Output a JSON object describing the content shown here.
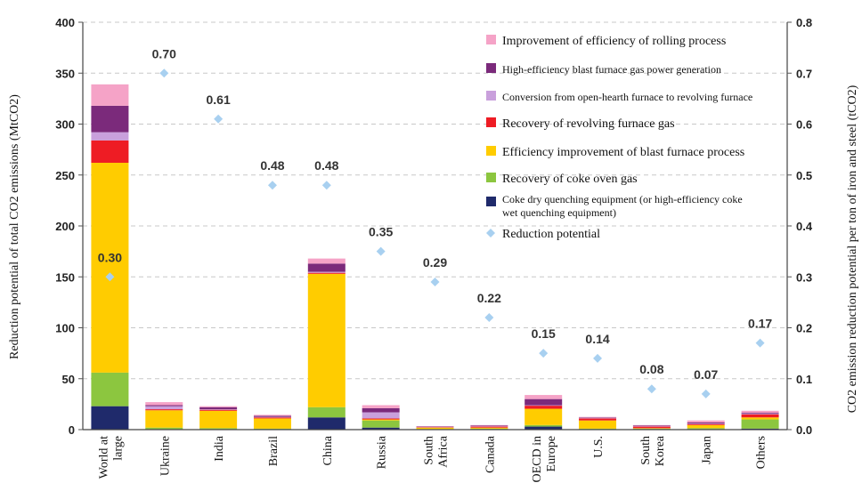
{
  "chart_data": {
    "type": "bar",
    "stacked": true,
    "y_left_label": "Reduction potential of total CO2 emissions (MtCO2)",
    "y_right_label": "CO2 emission reduction potential per ton of iron and steel (tCO2)",
    "y_left_range": [
      0,
      400
    ],
    "y_left_ticks": [
      "0",
      "50",
      "100",
      "150",
      "200",
      "250",
      "300",
      "350",
      "400"
    ],
    "y_right_range": [
      0,
      0.8
    ],
    "y_right_ticks": [
      "0.0",
      "0.1",
      "0.2",
      "0.3",
      "0.4",
      "0.5",
      "0.6",
      "0.7",
      "0.8"
    ],
    "grid": "horizontal-dashed",
    "legend_position": "top-right",
    "categories": [
      {
        "line1": "World at",
        "line2": "large",
        "color": "#111111"
      },
      {
        "line1": "Ukraine",
        "line2": "",
        "color": "#111111"
      },
      {
        "line1": "India",
        "line2": "",
        "color": "#111111"
      },
      {
        "line1": "Brazil",
        "line2": "",
        "color": "#111111"
      },
      {
        "line1": "China",
        "line2": "",
        "color": "#111111"
      },
      {
        "line1": "Russia",
        "line2": "",
        "color": "#111111"
      },
      {
        "line1": "South",
        "line2": "Africa",
        "color": "#111111"
      },
      {
        "line1": "Canada",
        "line2": "",
        "color": "#111111"
      },
      {
        "line1": "OECD in",
        "line2": "Europe",
        "color": "#111111"
      },
      {
        "line1": "U.S.",
        "line2": "",
        "color": "#111111"
      },
      {
        "line1": "South",
        "line2": "Korea",
        "color": "#111111"
      },
      {
        "line1": "Japan",
        "line2": "",
        "color": "#e8464a"
      },
      {
        "line1": "Others",
        "line2": "",
        "color": "#111111"
      }
    ],
    "series": [
      {
        "name": "Coke dry quenching equipment (or high-efficiency coke wet quenching equipment)",
        "name_line2": "wet quenching equipment)",
        "name_line1": "Coke dry quenching equipment (or high-efficiency coke",
        "color": "#1f2a6b",
        "values": [
          23,
          0.5,
          0.5,
          0.5,
          12,
          2,
          0.3,
          0.5,
          3,
          0.5,
          0.5,
          0.5,
          1
        ]
      },
      {
        "name": "Recovery of coke oven gas",
        "color": "#8cc63f",
        "values": [
          33,
          1.5,
          1,
          0.5,
          10,
          7,
          0.3,
          0.5,
          1.5,
          0.5,
          0.5,
          1,
          9
        ]
      },
      {
        "name": "Efficiency improvement of blast furnace process",
        "color": "#ffcc00",
        "values": [
          206,
          17,
          17,
          10,
          131,
          1,
          1.4,
          1,
          16,
          8,
          0.5,
          3,
          2
        ]
      },
      {
        "name": "Recovery of revolving furnace gas",
        "color": "#ee1c24",
        "values": [
          22,
          1,
          1,
          1,
          1,
          1,
          0.5,
          1,
          3,
          2,
          1.5,
          1,
          3
        ]
      },
      {
        "name": "Conversion from open-hearth furnace to revolving furnace",
        "color": "#c9a0dc",
        "values": [
          8,
          3,
          0.5,
          0.5,
          1,
          6,
          0.3,
          0.5,
          0.5,
          0.5,
          0.5,
          0.5,
          0.5
        ]
      },
      {
        "name": "High-efficiency blast furnace gas power generation",
        "color": "#7b2a7b",
        "values": [
          26,
          1,
          2,
          1,
          8,
          4,
          0.3,
          0.5,
          6,
          0.5,
          0.5,
          1,
          1
        ]
      },
      {
        "name": "Improvement of efficiency of rolling process",
        "color": "#f5a3c7",
        "values": [
          21,
          3,
          1,
          1,
          5,
          3,
          0.3,
          0.5,
          4,
          0.5,
          0.5,
          2,
          2
        ]
      }
    ],
    "reduction_potential": {
      "name": "Reduction potential",
      "color": "#a8d0f0",
      "values": [
        0.3,
        0.7,
        0.61,
        0.48,
        0.48,
        0.35,
        0.29,
        0.22,
        0.15,
        0.14,
        0.08,
        0.07,
        0.17
      ],
      "labels": [
        "0.30",
        "0.70",
        "0.61",
        "0.48",
        "0.48",
        "0.35",
        "0.29",
        "0.22",
        "0.15",
        "0.14",
        "0.08",
        "0.07",
        "0.17"
      ]
    }
  }
}
